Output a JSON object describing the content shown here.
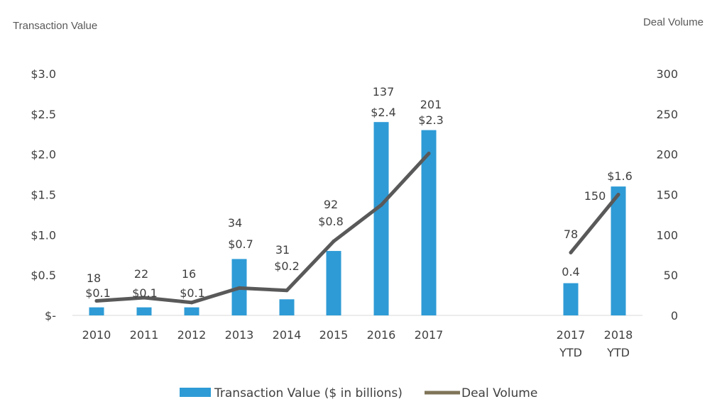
{
  "chart_data": {
    "type": "bar",
    "title": "",
    "ylabel": "Transaction Value",
    "y2label": "Deal Volume",
    "categories": [
      "2010",
      "2011",
      "2012",
      "2013",
      "2014",
      "2015",
      "2016",
      "2017",
      "",
      "2017\nYTD",
      "2018\nYTD"
    ],
    "ylim": [
      0,
      3.0
    ],
    "y2lim": [
      0,
      300
    ],
    "y_ticks": [
      "$-",
      "$0.5",
      "$1.0",
      "$1.5",
      "$2.0",
      "$2.5",
      "$3.0"
    ],
    "y2_ticks": [
      "0",
      "50",
      "100",
      "150",
      "200",
      "250",
      "300"
    ],
    "grid": false,
    "legend_position": "bottom-center",
    "series": [
      {
        "name": "Transaction Value ($ in billions)",
        "type": "bar",
        "axis": "left",
        "color": "#2e9bd6",
        "values": [
          0.1,
          0.1,
          0.1,
          0.7,
          0.2,
          0.8,
          2.4,
          2.3,
          null,
          0.4,
          1.6
        ],
        "labels": [
          "$0.1",
          "$0.1",
          "$0.1",
          "$0.7",
          "$0.2",
          "$0.8",
          "$2.4",
          "$2.3",
          "",
          "0.4",
          "$1.6"
        ]
      },
      {
        "name": "Deal Volume",
        "type": "line",
        "axis": "right",
        "color": "#595959",
        "legend_color": "#7f7458",
        "values": [
          18,
          22,
          16,
          34,
          31,
          92,
          137,
          201,
          null,
          78,
          150
        ],
        "labels": [
          "18",
          "22",
          "16",
          "34",
          "31",
          "92",
          "137",
          "201",
          "",
          "78",
          "150"
        ]
      }
    ]
  }
}
